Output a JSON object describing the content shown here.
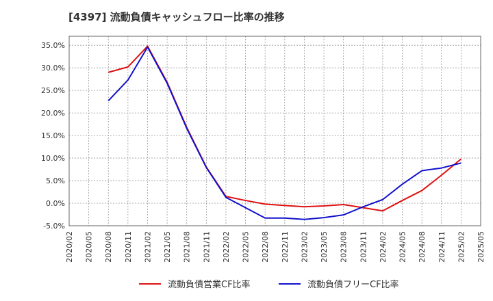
{
  "chart_data": {
    "type": "line",
    "title": "[4397]  流動負債キャッシュフロー比率の推移",
    "xlabel": "",
    "ylabel": "",
    "x_ticks": [
      "2020/02",
      "2020/05",
      "2020/08",
      "2020/11",
      "2021/02",
      "2021/05",
      "2021/08",
      "2021/11",
      "2022/02",
      "2022/05",
      "2022/08",
      "2022/11",
      "2023/02",
      "2023/05",
      "2023/08",
      "2023/11",
      "2024/02",
      "2024/05",
      "2024/08",
      "2024/11",
      "2025/02",
      "2025/05"
    ],
    "y_ticks": [
      "-5.0%",
      "0.0%",
      "5.0%",
      "10.0%",
      "15.0%",
      "20.0%",
      "25.0%",
      "30.0%",
      "35.0%"
    ],
    "ylim": [
      -5,
      37
    ],
    "grid": true,
    "legend_position": "bottom",
    "series": [
      {
        "name": "流動負債営業CF比率",
        "color": "#dd1111",
        "points": [
          [
            "2020/08",
            29.0
          ],
          [
            "2020/11",
            30.2
          ],
          [
            "2021/02",
            34.8
          ],
          [
            "2021/05",
            26.8
          ],
          [
            "2021/08",
            16.8
          ],
          [
            "2021/11",
            8.0
          ],
          [
            "2022/02",
            1.5
          ],
          [
            "2022/05",
            0.6
          ],
          [
            "2022/08",
            -0.2
          ],
          [
            "2022/11",
            -0.5
          ],
          [
            "2023/02",
            -0.8
          ],
          [
            "2023/05",
            -0.6
          ],
          [
            "2023/08",
            -0.3
          ],
          [
            "2023/11",
            -1.0
          ],
          [
            "2024/02",
            -1.7
          ],
          [
            "2024/05",
            0.6
          ],
          [
            "2024/08",
            2.8
          ],
          [
            "2024/11",
            6.2
          ],
          [
            "2025/02",
            9.8
          ]
        ]
      },
      {
        "name": "流動負債フリーCF比率",
        "color": "#1111cc",
        "points": [
          [
            "2020/08",
            22.7
          ],
          [
            "2020/11",
            27.3
          ],
          [
            "2021/02",
            34.6
          ],
          [
            "2021/05",
            26.6
          ],
          [
            "2021/08",
            16.6
          ],
          [
            "2021/11",
            7.9
          ],
          [
            "2022/02",
            1.3
          ],
          [
            "2022/05",
            -1.0
          ],
          [
            "2022/08",
            -3.3
          ],
          [
            "2022/11",
            -3.3
          ],
          [
            "2023/02",
            -3.6
          ],
          [
            "2023/05",
            -3.2
          ],
          [
            "2023/08",
            -2.6
          ],
          [
            "2023/11",
            -0.8
          ],
          [
            "2024/02",
            0.8
          ],
          [
            "2024/05",
            4.2
          ],
          [
            "2024/08",
            7.2
          ],
          [
            "2024/11",
            7.8
          ],
          [
            "2025/02",
            8.9
          ]
        ]
      }
    ]
  }
}
